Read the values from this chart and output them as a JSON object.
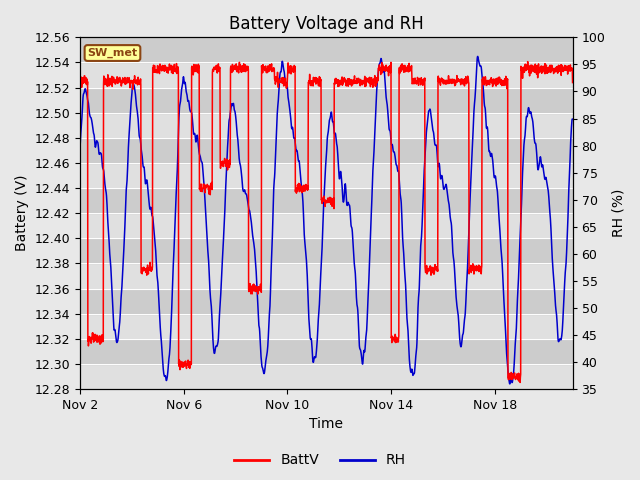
{
  "title": "Battery Voltage and RH",
  "xlabel": "Time",
  "ylabel_left": "Battery (V)",
  "ylabel_right": "RH (%)",
  "ylim_left": [
    12.28,
    12.56
  ],
  "ylim_right": [
    35,
    100
  ],
  "yticks_left": [
    12.28,
    12.3,
    12.32,
    12.34,
    12.36,
    12.38,
    12.4,
    12.42,
    12.44,
    12.46,
    12.48,
    12.5,
    12.52,
    12.54,
    12.56
  ],
  "yticks_right": [
    35,
    40,
    45,
    50,
    55,
    60,
    65,
    70,
    75,
    80,
    85,
    90,
    95,
    100
  ],
  "xtick_labels": [
    "Nov 2",
    "Nov 6",
    "Nov 10",
    "Nov 14",
    "Nov 18"
  ],
  "xtick_positions": [
    0,
    4,
    8,
    12,
    16
  ],
  "xlim": [
    0,
    19
  ],
  "station_label": "SW_met",
  "batt_color": "#ff0000",
  "rh_color": "#0000cc",
  "bg_color": "#e8e8e8",
  "plot_bg_color": "#d8d8d8",
  "band_light": "#e0e0e0",
  "band_dark": "#cccccc",
  "grid_color": "#ffffff",
  "legend_batt": "BattV",
  "legend_rh": "RH",
  "title_fontsize": 12,
  "label_fontsize": 10,
  "tick_fontsize": 9,
  "legend_fontsize": 10
}
